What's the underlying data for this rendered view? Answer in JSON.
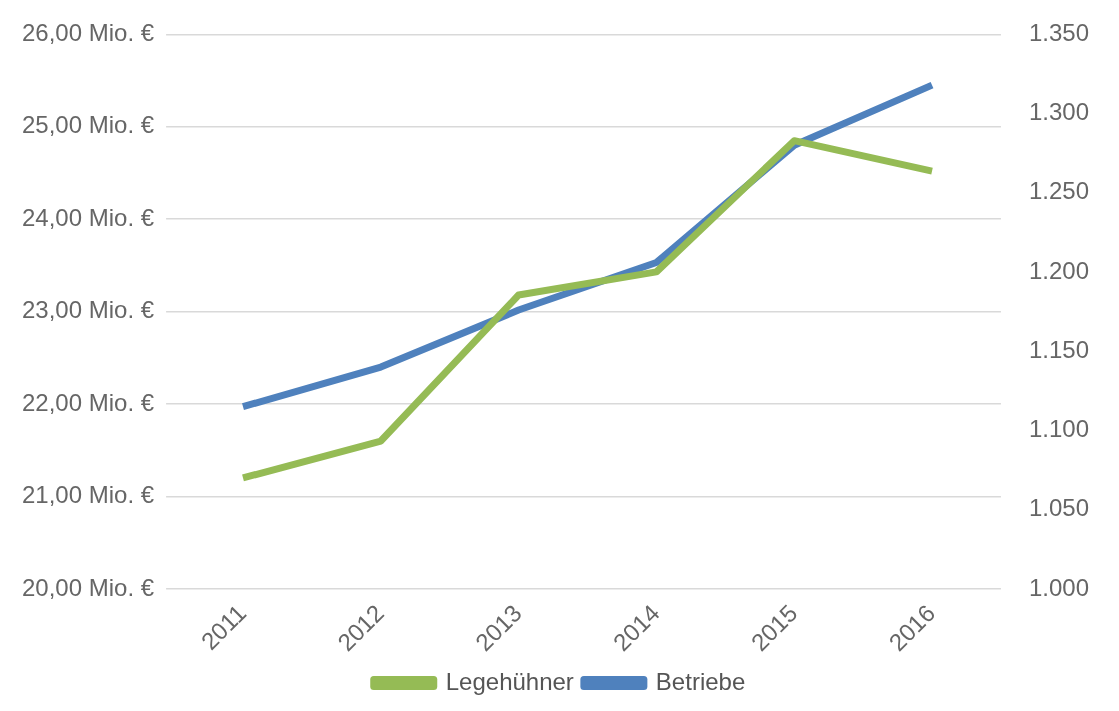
{
  "chart_data": {
    "type": "line",
    "categories": [
      "2011",
      "2012",
      "2013",
      "2014",
      "2015",
      "2016"
    ],
    "series": [
      {
        "name": "Legehühner",
        "color": "#95bb55",
        "values": [
          21.2,
          21.6,
          23.18,
          23.43,
          24.85,
          24.52
        ]
      },
      {
        "name": "Betriebe",
        "color": "#4f81bd",
        "axis": "y2",
        "values": [
          1115,
          1140,
          1176,
          1206,
          1280,
          1318
        ]
      }
    ],
    "ylim": [
      20,
      26
    ],
    "yticks": [
      {
        "value": 20,
        "label": "20,00 Mio. €"
      },
      {
        "value": 21,
        "label": "21,00 Mio. €"
      },
      {
        "value": 22,
        "label": "22,00 Mio. €"
      },
      {
        "value": 23,
        "label": "23,00 Mio. €"
      },
      {
        "value": 24,
        "label": "24,00 Mio. €"
      },
      {
        "value": 25,
        "label": "25,00 Mio. €"
      },
      {
        "value": 26,
        "label": "26,00 Mio. €"
      }
    ],
    "y2lim": [
      1000,
      1350
    ],
    "y2ticks": [
      {
        "value": 1000,
        "label": "1.000"
      },
      {
        "value": 1050,
        "label": "1.050"
      },
      {
        "value": 1100,
        "label": "1.100"
      },
      {
        "value": 1150,
        "label": "1.150"
      },
      {
        "value": 1200,
        "label": "1.200"
      },
      {
        "value": 1250,
        "label": "1.250"
      },
      {
        "value": 1300,
        "label": "1.300"
      },
      {
        "value": 1350,
        "label": "1.350"
      }
    ],
    "grid": "y",
    "legend": "bottom",
    "marker": "none",
    "line_style": "solid"
  }
}
